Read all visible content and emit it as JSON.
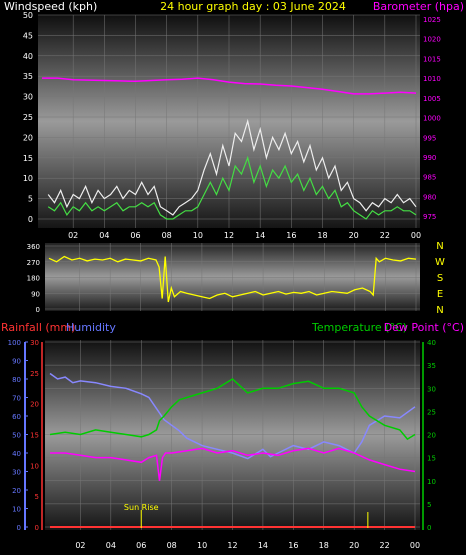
{
  "colors": {
    "background": "#000000",
    "white": "#ffffff",
    "yellow": "#ffff00",
    "magenta": "#ff00ff",
    "green": "#00cc00",
    "lightgreen": "#33dd33",
    "red": "#ff3333",
    "blue": "#6677ff",
    "humidity": "#8888ff",
    "gust": "#eeeeee",
    "wind": "#44dd44"
  },
  "chart_data": [
    {
      "type": "line",
      "title_left": "Windspeed (kph)",
      "title_center": "24 hour graph day : 03 June 2024",
      "title_right": "Barometer (hpa)",
      "x_tick_labels": [
        "02",
        "04",
        "06",
        "08",
        "10",
        "12",
        "14",
        "16",
        "18",
        "20",
        "22",
        "00"
      ],
      "x_range_hours": [
        0,
        24
      ],
      "y_left": {
        "ticks": [
          "0",
          "5",
          "10",
          "15",
          "20",
          "25",
          "30",
          "35",
          "40",
          "45",
          "50"
        ],
        "range": [
          0,
          50
        ]
      },
      "y_right": {
        "ticks": [
          "975",
          "980",
          "985",
          "990",
          "995",
          "1000",
          "1005",
          "1010",
          "1015",
          "1020",
          "1025"
        ],
        "range": [
          972,
          1026
        ]
      },
      "series": [
        {
          "axis": "left",
          "x": [
            0.4,
            0.8,
            1.2,
            1.6,
            2.0,
            2.4,
            2.8,
            3.2,
            3.6,
            4.0,
            4.4,
            4.8,
            5.2,
            5.6,
            6.0,
            6.4,
            6.8,
            7.2,
            7.6,
            8.0,
            8.4,
            8.8,
            9.2,
            9.6,
            10.0,
            10.4,
            10.8,
            11.2,
            11.6,
            12.0,
            12.4,
            12.8,
            13.2,
            13.6,
            14.0,
            14.4,
            14.8,
            15.2,
            15.6,
            16.0,
            16.4,
            16.8,
            17.2,
            17.6,
            18.0,
            18.4,
            18.8,
            19.2,
            19.6,
            20.0,
            20.4,
            20.8,
            21.2,
            21.6,
            22.0,
            22.4,
            22.8,
            23.2,
            23.6,
            24.0
          ],
          "y": [
            6,
            4,
            7,
            3,
            6,
            5,
            8,
            4,
            7,
            5,
            6,
            8,
            5,
            7,
            6,
            9,
            6,
            8,
            3,
            2,
            1,
            3,
            4,
            5,
            7,
            12,
            16,
            11,
            18,
            13,
            21,
            19,
            24,
            17,
            22,
            15,
            20,
            17,
            21,
            16,
            19,
            14,
            18,
            12,
            15,
            10,
            13,
            7,
            9,
            5,
            4,
            2,
            4,
            3,
            5,
            4,
            6,
            4,
            5,
            3
          ]
        },
        {
          "axis": "left",
          "x": [
            0.4,
            0.8,
            1.2,
            1.6,
            2.0,
            2.4,
            2.8,
            3.2,
            3.6,
            4.0,
            4.4,
            4.8,
            5.2,
            5.6,
            6.0,
            6.4,
            6.8,
            7.2,
            7.6,
            8.0,
            8.4,
            8.8,
            9.2,
            9.6,
            10.0,
            10.4,
            10.8,
            11.2,
            11.6,
            12.0,
            12.4,
            12.8,
            13.2,
            13.6,
            14.0,
            14.4,
            14.8,
            15.2,
            15.6,
            16.0,
            16.4,
            16.8,
            17.2,
            17.6,
            18.0,
            18.4,
            18.8,
            19.2,
            19.6,
            20.0,
            20.4,
            20.8,
            21.2,
            21.6,
            22.0,
            22.4,
            22.8,
            23.2,
            23.6,
            24.0
          ],
          "y": [
            3,
            2,
            4,
            1,
            3,
            2,
            4,
            2,
            3,
            2,
            3,
            4,
            2,
            3,
            3,
            4,
            3,
            4,
            1,
            0,
            0,
            1,
            2,
            2,
            3,
            6,
            9,
            6,
            10,
            7,
            13,
            11,
            15,
            9,
            13,
            8,
            12,
            10,
            13,
            9,
            11,
            7,
            10,
            6,
            8,
            5,
            7,
            3,
            4,
            2,
            1,
            0,
            2,
            1,
            2,
            2,
            3,
            2,
            2,
            1
          ]
        },
        {
          "axis": "right",
          "x": [
            0,
            1,
            2,
            3,
            4,
            5,
            6,
            7,
            8,
            9,
            10,
            11,
            12,
            13,
            14,
            15,
            16,
            17,
            18,
            19,
            20,
            21,
            22,
            23,
            24
          ],
          "y": [
            1010,
            1010,
            1009.6,
            1009.5,
            1009.4,
            1009.3,
            1009.2,
            1009.4,
            1009.6,
            1009.7,
            1010,
            1009.6,
            1009,
            1008.6,
            1008.5,
            1008.2,
            1008,
            1007.6,
            1007.2,
            1006.6,
            1006,
            1006,
            1006.2,
            1006.4,
            1006.2
          ]
        }
      ]
    },
    {
      "type": "line",
      "y_left": {
        "ticks": [
          "360",
          "270",
          "180",
          "90",
          "0"
        ],
        "range": [
          0,
          360
        ]
      },
      "right_labels": [
        "N",
        "W",
        "S",
        "E",
        "N"
      ],
      "x_range_hours": [
        0,
        24
      ],
      "series": [
        {
          "x": [
            0,
            0.5,
            1,
            1.5,
            2,
            2.5,
            3,
            3.5,
            4,
            4.5,
            5,
            5.5,
            6,
            6.5,
            7,
            7.2,
            7.4,
            7.6,
            7.8,
            8.0,
            8.2,
            8.6,
            9,
            9.5,
            10,
            10.5,
            11,
            11.5,
            12,
            12.5,
            13,
            13.5,
            14,
            14.5,
            15,
            15.5,
            16,
            16.5,
            17,
            17.5,
            18,
            18.5,
            19,
            19.5,
            20,
            20.5,
            21,
            21.2,
            21.4,
            21.6,
            22,
            22.5,
            23,
            23.5,
            24
          ],
          "y": [
            290,
            270,
            300,
            280,
            290,
            275,
            285,
            280,
            290,
            270,
            285,
            280,
            275,
            290,
            280,
            240,
            60,
            300,
            40,
            120,
            70,
            100,
            90,
            80,
            70,
            60,
            80,
            90,
            70,
            80,
            90,
            100,
            80,
            90,
            100,
            85,
            95,
            90,
            100,
            80,
            90,
            100,
            95,
            90,
            110,
            120,
            100,
            80,
            290,
            270,
            290,
            280,
            275,
            290,
            285
          ]
        }
      ]
    },
    {
      "type": "line",
      "title_left_1": "Rainfall (mm)",
      "title_left_2": "Humidity",
      "title_right_1": "Temperature (°C)",
      "title_right_2": "Dew Point (°C)",
      "x_tick_labels": [
        "02",
        "04",
        "06",
        "08",
        "10",
        "12",
        "14",
        "16",
        "18",
        "20",
        "22",
        "00"
      ],
      "x_range_hours": [
        0,
        24
      ],
      "y_humidity": {
        "ticks": [
          "0",
          "10",
          "20",
          "30",
          "40",
          "50",
          "60",
          "70",
          "80",
          "90",
          "100"
        ],
        "range": [
          0,
          100
        ]
      },
      "y_rain": {
        "ticks": [
          "0",
          "5",
          "10",
          "15",
          "20",
          "25",
          "30"
        ],
        "range": [
          0,
          30
        ]
      },
      "y_temp": {
        "ticks": [
          "0",
          "5",
          "10",
          "15",
          "20",
          "25",
          "30",
          "35",
          "40"
        ],
        "range": [
          0,
          40
        ]
      },
      "annotation": "Sun Rise",
      "sunrise_hour": 6.0,
      "sunset_hour": 20.9,
      "series": [
        {
          "axis": "humidity",
          "x": [
            0,
            0.5,
            1,
            1.5,
            2,
            3,
            4,
            5,
            6,
            6.5,
            7,
            7.5,
            8,
            8.5,
            9,
            10,
            11,
            12,
            13,
            14,
            14.5,
            15,
            16,
            17,
            18,
            19,
            20,
            20.5,
            21,
            22,
            23,
            24
          ],
          "y": [
            83,
            80,
            81,
            78,
            79,
            78,
            76,
            75,
            72,
            70,
            64,
            58,
            55,
            52,
            48,
            44,
            42,
            40,
            37,
            42,
            38,
            40,
            44,
            42,
            46,
            44,
            40,
            46,
            55,
            60,
            59,
            65
          ]
        },
        {
          "axis": "temp",
          "x": [
            0,
            1,
            2,
            3,
            4,
            5,
            6,
            6.5,
            7,
            7.2,
            7.5,
            8,
            8.5,
            9,
            10,
            11,
            11.5,
            12,
            13,
            14,
            15,
            16,
            17,
            18,
            19,
            20,
            20.5,
            21,
            22,
            23,
            23.5,
            24
          ],
          "y": [
            20,
            20.5,
            20,
            21,
            20.5,
            20,
            19.5,
            20,
            21,
            23,
            24,
            26,
            27.5,
            28,
            29,
            30,
            31,
            32,
            29,
            30,
            30,
            31,
            31.5,
            30,
            30,
            29,
            26,
            24,
            22,
            21,
            19,
            20
          ]
        },
        {
          "axis": "temp",
          "x": [
            0,
            1,
            2,
            3,
            4,
            5,
            6,
            6.5,
            7,
            7.2,
            7.4,
            7.6,
            8,
            9,
            10,
            11,
            12,
            13,
            14,
            15,
            16,
            17,
            18,
            19,
            20,
            21,
            22,
            23,
            24
          ],
          "y": [
            16,
            16,
            15.5,
            15,
            15,
            14.5,
            14,
            15,
            15.5,
            10,
            15,
            16,
            16,
            16.5,
            17,
            16,
            16.5,
            15.5,
            16,
            15.5,
            16.5,
            17,
            16,
            17,
            16,
            14.5,
            13.5,
            12.5,
            12
          ]
        },
        {
          "axis": "rain",
          "x": [
            0,
            24
          ],
          "y": [
            0,
            0
          ]
        }
      ]
    }
  ]
}
